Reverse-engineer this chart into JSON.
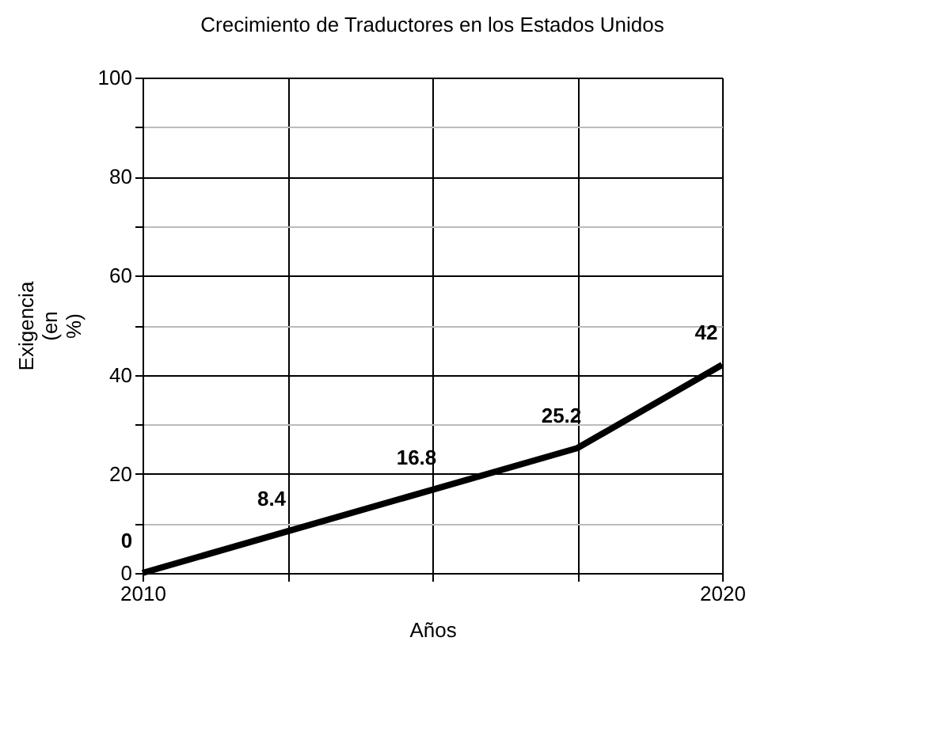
{
  "chart_data": {
    "type": "line",
    "title": "Crecimiento de Traductores en los Estados Unidos",
    "xlabel": "Años",
    "ylabel": "Exigencia (en %)",
    "x": [
      2010,
      2012.5,
      2015,
      2017.5,
      2020
    ],
    "series": [
      {
        "color": "#000000",
        "values": [
          0,
          8.4,
          16.8,
          25.2,
          42
        ]
      }
    ],
    "xlim": [
      2010,
      2020
    ],
    "xticks": [
      2010,
      {
        "value": 2012.5,
        "label": null
      },
      {
        "value": 2015,
        "label": null
      },
      {
        "value": 2017.5,
        "label": null
      },
      2020
    ],
    "ylim": [
      0,
      100
    ],
    "yticks": [
      0,
      {
        "value": 10,
        "label": null
      },
      20,
      {
        "value": 30,
        "label": null
      },
      40,
      {
        "value": 50,
        "label": null
      },
      60,
      {
        "value": 70,
        "label": null
      },
      80,
      {
        "value": 90,
        "label": null
      },
      100
    ],
    "grid": true,
    "data_labels": true,
    "marker": "none",
    "line_style": "solid"
  }
}
